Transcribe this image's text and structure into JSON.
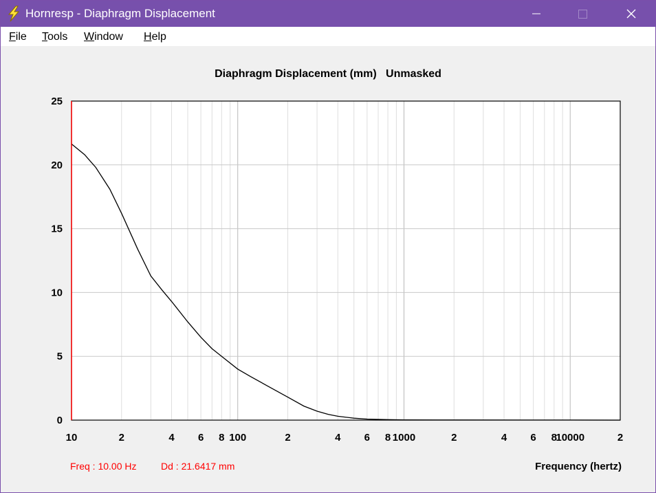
{
  "window": {
    "title": "Hornresp - Diaphragm Displacement"
  },
  "menu": [
    {
      "mnemonic": "F",
      "rest": "ile"
    },
    {
      "mnemonic": "T",
      "rest": "ools"
    },
    {
      "mnemonic": "W",
      "rest": "indow"
    },
    {
      "mnemonic": "H",
      "rest": "elp"
    }
  ],
  "readout": {
    "freq": "Freq : 10.00 Hz",
    "dd": "Dd : 21.6417 mm"
  },
  "colors": {
    "title_bar": "#7750ac",
    "curve": "#000000",
    "cursor": "#ff0000",
    "grid": "#c8c8c8"
  },
  "chart_data": {
    "type": "line",
    "title": "Diaphragm Displacement (mm)   Unmasked",
    "xlabel": "Frequency (hertz)",
    "ylabel": "",
    "x_scale": "log",
    "xlim": [
      10,
      20000
    ],
    "ylim": [
      0,
      25
    ],
    "grid": true,
    "y_ticks": [
      "0",
      "5",
      "10",
      "15",
      "20",
      "25"
    ],
    "x_ticks": [
      {
        "value": 10,
        "label": "10"
      },
      {
        "value": 20,
        "label": "2"
      },
      {
        "value": 40,
        "label": "4"
      },
      {
        "value": 60,
        "label": "6"
      },
      {
        "value": 80,
        "label": "8"
      },
      {
        "value": 100,
        "label": "100"
      },
      {
        "value": 200,
        "label": "2"
      },
      {
        "value": 400,
        "label": "4"
      },
      {
        "value": 600,
        "label": "6"
      },
      {
        "value": 800,
        "label": "8"
      },
      {
        "value": 1000,
        "label": "1000"
      },
      {
        "value": 2000,
        "label": "2"
      },
      {
        "value": 4000,
        "label": "4"
      },
      {
        "value": 6000,
        "label": "6"
      },
      {
        "value": 8000,
        "label": "8"
      },
      {
        "value": 10000,
        "label": "10000"
      },
      {
        "value": 20000,
        "label": "2"
      }
    ],
    "cursor_x": 10,
    "series": [
      {
        "x": [
          10,
          12,
          14,
          17,
          20,
          25,
          30,
          35,
          40,
          50,
          60,
          70,
          80,
          100,
          120,
          150,
          200,
          250,
          300,
          350,
          400,
          500,
          600,
          800,
          1000,
          2000,
          5000,
          10000,
          20000
        ],
        "y": [
          21.64,
          20.8,
          19.8,
          18.1,
          16.2,
          13.4,
          11.3,
          10.2,
          9.3,
          7.7,
          6.5,
          5.6,
          5.0,
          4.0,
          3.4,
          2.7,
          1.8,
          1.1,
          0.7,
          0.45,
          0.3,
          0.15,
          0.08,
          0.04,
          0.02,
          0.01,
          0.005,
          0.003,
          0.002
        ]
      }
    ]
  }
}
